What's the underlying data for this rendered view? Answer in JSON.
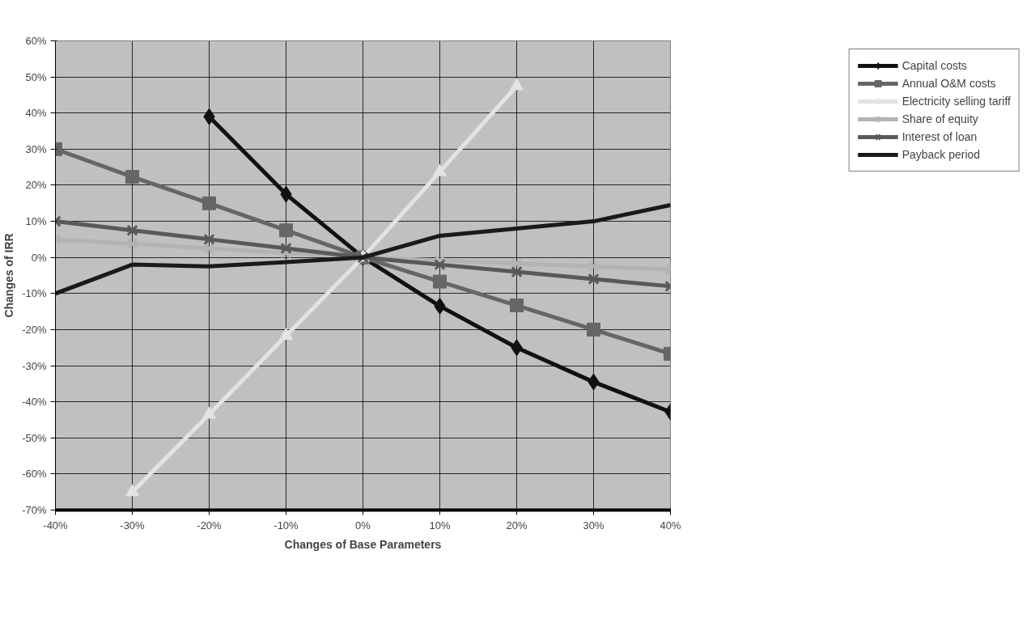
{
  "chart_data": {
    "type": "line",
    "xlabel": "Changes of Base Parameters",
    "ylabel": "Changes of IRR",
    "x": [
      -40,
      -30,
      -20,
      -10,
      0,
      10,
      20,
      30,
      40
    ],
    "xlim": [
      -40,
      40
    ],
    "xticks": [
      {
        "value": -40,
        "label": "-40%"
      },
      {
        "value": -30,
        "label": "-30%"
      },
      {
        "value": -20,
        "label": "-20%"
      },
      {
        "value": -10,
        "label": "-10%"
      },
      {
        "value": 0,
        "label": "0%"
      },
      {
        "value": 10,
        "label": "10%"
      },
      {
        "value": 20,
        "label": "20%"
      },
      {
        "value": 30,
        "label": "30%"
      },
      {
        "value": 40,
        "label": "40%"
      }
    ],
    "ylim": [
      -70,
      60
    ],
    "yticks": [
      {
        "value": -70,
        "label": "-70%"
      },
      {
        "value": -60,
        "label": "-60%"
      },
      {
        "value": -50,
        "label": "-50%"
      },
      {
        "value": -40,
        "label": "-40%"
      },
      {
        "value": -30,
        "label": "-30%"
      },
      {
        "value": -20,
        "label": "-20%"
      },
      {
        "value": -10,
        "label": "-10%"
      },
      {
        "value": 0,
        "label": "0%"
      },
      {
        "value": 10,
        "label": "10%"
      },
      {
        "value": 20,
        "label": "20%"
      },
      {
        "value": 30,
        "label": "30%"
      },
      {
        "value": 40,
        "label": "40%"
      },
      {
        "value": 50,
        "label": "50%"
      },
      {
        "value": 60,
        "label": "60%"
      }
    ],
    "grid": true,
    "legend": "right",
    "series": [
      {
        "name": "Capital costs",
        "color": "#111111",
        "marker": "diamond",
        "values": [
          null,
          null,
          39,
          17.5,
          0,
          -13.5,
          -25,
          -34.5,
          -42.8
        ]
      },
      {
        "name": "Annual O&M costs",
        "color": "#666666",
        "marker": "square",
        "values": [
          30,
          22.3,
          15,
          7.5,
          0,
          -6.7,
          -13.3,
          -20,
          -26.7
        ]
      },
      {
        "name": "Electricity selling tariff",
        "color": "#e3e3e3",
        "marker": "triangle",
        "values": [
          null,
          -65,
          -43.5,
          -21.7,
          0,
          23.7,
          47.5,
          null,
          null
        ]
      },
      {
        "name": "Share of equity",
        "color": "#b3b3b3",
        "marker": "cross",
        "values": [
          5,
          3.8,
          2.5,
          1.2,
          0,
          -0.8,
          -1.7,
          -2.5,
          -3.3
        ]
      },
      {
        "name": "Interest of loan",
        "color": "#595959",
        "marker": "cross",
        "values": [
          10,
          7.5,
          5,
          2.5,
          0,
          -2,
          -4,
          -6,
          -8
        ]
      },
      {
        "name": "Payback period",
        "color": "#1a1a1a",
        "marker": "none",
        "values": [
          -10,
          -2,
          -2.5,
          -1.3,
          0,
          6,
          8,
          10,
          14.5
        ]
      }
    ]
  }
}
